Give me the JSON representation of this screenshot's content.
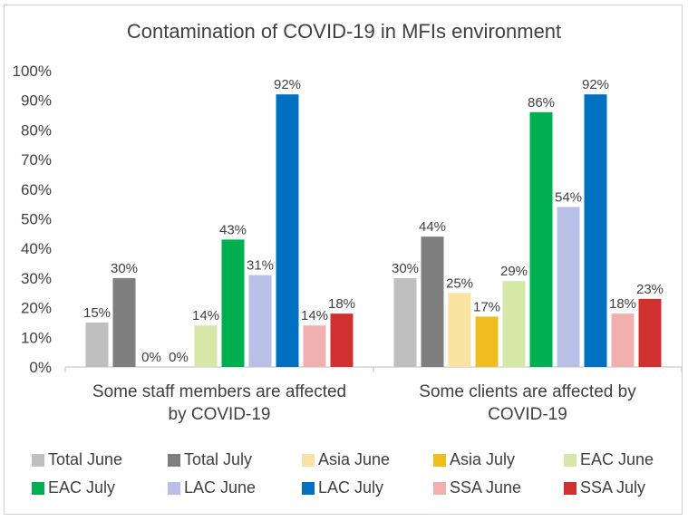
{
  "chart_data": {
    "type": "bar",
    "title": "Contamination of COVID-19 in MFIs environment",
    "categories": [
      [
        "Some staff members are affected",
        "by COVID-19"
      ],
      [
        "Some clients are affected by",
        "COVID-19"
      ]
    ],
    "ylim": [
      0,
      100
    ],
    "yticks": [
      "0%",
      "10%",
      "20%",
      "30%",
      "40%",
      "50%",
      "60%",
      "70%",
      "80%",
      "90%",
      "100%"
    ],
    "grid": false,
    "legend_position": "bottom",
    "series": [
      {
        "name": "Total June",
        "color": "#bfbfbf",
        "values": [
          15,
          30
        ],
        "labels": [
          "15%",
          "30%"
        ]
      },
      {
        "name": "Total July",
        "color": "#7f7f7f",
        "values": [
          30,
          44
        ],
        "labels": [
          "30%",
          "44%"
        ]
      },
      {
        "name": "Asia June",
        "color": "#f8e3a3",
        "values": [
          0,
          25
        ],
        "labels": [
          "0%",
          "25%"
        ]
      },
      {
        "name": "Asia July",
        "color": "#f0bd1f",
        "values": [
          0,
          17
        ],
        "labels": [
          "0%",
          "17%"
        ]
      },
      {
        "name": "EAC June",
        "color": "#d6e8a8",
        "values": [
          14,
          29
        ],
        "labels": [
          "14%",
          "29%"
        ]
      },
      {
        "name": "EAC July",
        "color": "#00b050",
        "values": [
          43,
          86
        ],
        "labels": [
          "43%",
          "86%"
        ]
      },
      {
        "name": "LAC June",
        "color": "#b8c0e8",
        "values": [
          31,
          54
        ],
        "labels": [
          "31%",
          "54%"
        ]
      },
      {
        "name": "LAC July",
        "color": "#0070c0",
        "values": [
          92,
          92
        ],
        "labels": [
          "92%",
          "92%"
        ]
      },
      {
        "name": "SSA June",
        "color": "#f0b0b0",
        "values": [
          14,
          18
        ],
        "labels": [
          "14%",
          "18%"
        ]
      },
      {
        "name": "SSA July",
        "color": "#d03030",
        "values": [
          18,
          23
        ],
        "labels": [
          "18%",
          "23%"
        ]
      }
    ]
  }
}
